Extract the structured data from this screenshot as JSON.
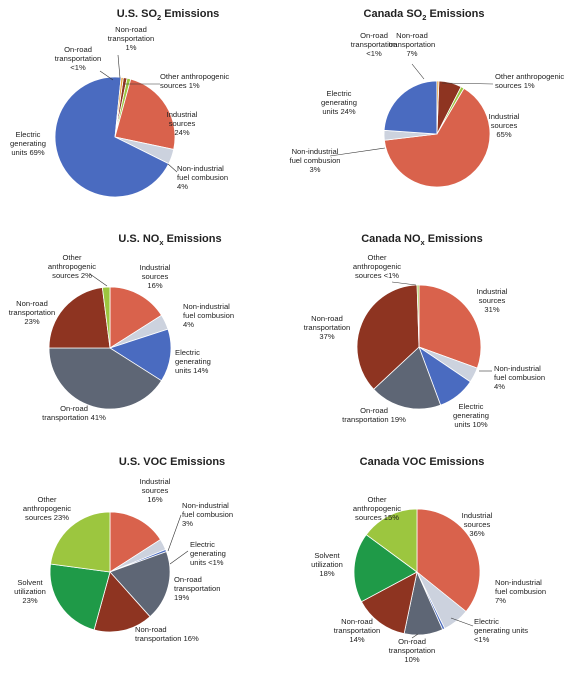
{
  "colors": {
    "electric": "#4A6BC0",
    "industrial": "#D9624C",
    "nonind": "#CCD2DE",
    "other": "#9CC63F",
    "onroad": "#5E6675",
    "nonroad": "#8E3421",
    "solvent": "#1F9A48",
    "orange": "#E9A33B"
  },
  "chart_data": [
    {
      "id": "us-so2",
      "type": "pie",
      "title": "U.S. SO",
      "title_sub": "2",
      "title_suffix": " Emissions",
      "slices": [
        {
          "label_lines": [
            "Non-road",
            "transportation",
            "1%"
          ],
          "value": 1,
          "color": "#8E3421"
        },
        {
          "label_lines": [
            "Other anthropogenic",
            "sources 1%"
          ],
          "value": 1,
          "color": "#9CC63F"
        },
        {
          "label_lines": [
            "Industrial",
            "sources",
            "24%"
          ],
          "value": 24,
          "color": "#D9624C"
        },
        {
          "label_lines": [
            "Non-industrial",
            "fuel combusion",
            "4%"
          ],
          "value": 4,
          "color": "#CCD2DE"
        },
        {
          "label_lines": [
            "Electric",
            "generating",
            "units 69%"
          ],
          "value": 69,
          "color": "#4A6BC0"
        },
        {
          "label_lines": [
            "On-road",
            "transportation",
            "<1%"
          ],
          "value": 0.6,
          "color": "#E9A33B"
        }
      ]
    },
    {
      "id": "ca-so2",
      "type": "pie",
      "title": "Canada SO",
      "title_sub": "2",
      "title_suffix": " Emissions",
      "slices": [
        {
          "label_lines": [
            "Non-road",
            "transportation",
            "7%"
          ],
          "value": 7,
          "color": "#8E3421"
        },
        {
          "label_lines": [
            "Other anthropogenic",
            "sources 1%"
          ],
          "value": 1,
          "color": "#9CC63F"
        },
        {
          "label_lines": [
            "Industrial",
            "sources",
            "65%"
          ],
          "value": 65,
          "color": "#D9624C"
        },
        {
          "label_lines": [
            "Non-industrial",
            "fuel combusion",
            "3%"
          ],
          "value": 3,
          "color": "#CCD2DE"
        },
        {
          "label_lines": [
            "Electric",
            "generating",
            "units 24%"
          ],
          "value": 24,
          "color": "#4A6BC0"
        },
        {
          "label_lines": [
            "On-road",
            "transportation",
            "<1%"
          ],
          "value": 0.6,
          "color": "#E9A33B"
        }
      ]
    },
    {
      "id": "us-nox",
      "type": "pie",
      "title": "U.S. NO",
      "title_sub": "x",
      "title_suffix": " Emissions",
      "slices": [
        {
          "label_lines": [
            "Industrial",
            "sources",
            "16%"
          ],
          "value": 16,
          "color": "#D9624C"
        },
        {
          "label_lines": [
            "Non-industrial",
            "fuel combusion",
            "4%"
          ],
          "value": 4,
          "color": "#CCD2DE"
        },
        {
          "label_lines": [
            "Electric",
            "generating",
            "units 14%"
          ],
          "value": 14,
          "color": "#4A6BC0"
        },
        {
          "label_lines": [
            "On-road",
            "transportation 41%"
          ],
          "value": 41,
          "color": "#5E6675"
        },
        {
          "label_lines": [
            "Non-road",
            "transportation",
            "23%"
          ],
          "value": 23,
          "color": "#8E3421"
        },
        {
          "label_lines": [
            "Other",
            "anthropogenic",
            "sources 2%"
          ],
          "value": 2,
          "color": "#9CC63F"
        }
      ]
    },
    {
      "id": "ca-nox",
      "type": "pie",
      "title": "Canada NO",
      "title_sub": "x",
      "title_suffix": " Emissions",
      "slices": [
        {
          "label_lines": [
            "Industrial",
            "sources",
            "31%"
          ],
          "value": 31,
          "color": "#D9624C"
        },
        {
          "label_lines": [
            "Non-industrial",
            "fuel combusion",
            "4%"
          ],
          "value": 4,
          "color": "#CCD2DE"
        },
        {
          "label_lines": [
            "Electric",
            "generating",
            "units 10%"
          ],
          "value": 10,
          "color": "#4A6BC0"
        },
        {
          "label_lines": [
            "On-road",
            "transportation 19%"
          ],
          "value": 19,
          "color": "#5E6675"
        },
        {
          "label_lines": [
            "Non-road",
            "transportation",
            "37%"
          ],
          "value": 37,
          "color": "#8E3421"
        },
        {
          "label_lines": [
            "Other",
            "anthropogenic",
            "sources <1%"
          ],
          "value": 0.5,
          "color": "#9CC63F"
        }
      ]
    },
    {
      "id": "us-voc",
      "type": "pie",
      "title": "U.S. VOC Emissions",
      "title_sub": "",
      "title_suffix": "",
      "slices": [
        {
          "label_lines": [
            "Industrial",
            "sources",
            "16%"
          ],
          "value": 16,
          "color": "#D9624C"
        },
        {
          "label_lines": [
            "Non-industrial",
            "fuel combusion",
            "3%"
          ],
          "value": 3,
          "color": "#CCD2DE"
        },
        {
          "label_lines": [
            "Electric",
            "generating",
            "units <1%"
          ],
          "value": 0.6,
          "color": "#4A6BC0"
        },
        {
          "label_lines": [
            "On-road",
            "transportation",
            "19%"
          ],
          "value": 19,
          "color": "#5E6675"
        },
        {
          "label_lines": [
            "Non-road",
            "transportation 16%"
          ],
          "value": 16,
          "color": "#8E3421"
        },
        {
          "label_lines": [
            "Solvent",
            "utilization",
            "23%"
          ],
          "value": 23,
          "color": "#1F9A48"
        },
        {
          "label_lines": [
            "Other",
            "anthropogenic",
            "sources 23%"
          ],
          "value": 23,
          "color": "#9CC63F"
        }
      ]
    },
    {
      "id": "ca-voc",
      "type": "pie",
      "title": "Canada VOC Emissions",
      "title_sub": "",
      "title_suffix": "",
      "slices": [
        {
          "label_lines": [
            "Industrial",
            "sources",
            "36%"
          ],
          "value": 36,
          "color": "#D9624C"
        },
        {
          "label_lines": [
            "Non-industrial",
            "fuel combusion",
            "7%"
          ],
          "value": 7,
          "color": "#CCD2DE"
        },
        {
          "label_lines": [
            "Electric",
            "generating units",
            "<1%"
          ],
          "value": 0.6,
          "color": "#4A6BC0"
        },
        {
          "label_lines": [
            "On-road",
            "transportation",
            "10%"
          ],
          "value": 10,
          "color": "#5E6675"
        },
        {
          "label_lines": [
            "Non-road",
            "transportation",
            "14%"
          ],
          "value": 14,
          "color": "#8E3421"
        },
        {
          "label_lines": [
            "Solvent",
            "utilization",
            "18%"
          ],
          "value": 18,
          "color": "#1F9A48"
        },
        {
          "label_lines": [
            "Other",
            "anthropogenic",
            "sources 15%"
          ],
          "value": 15,
          "color": "#9CC63F"
        }
      ]
    }
  ]
}
